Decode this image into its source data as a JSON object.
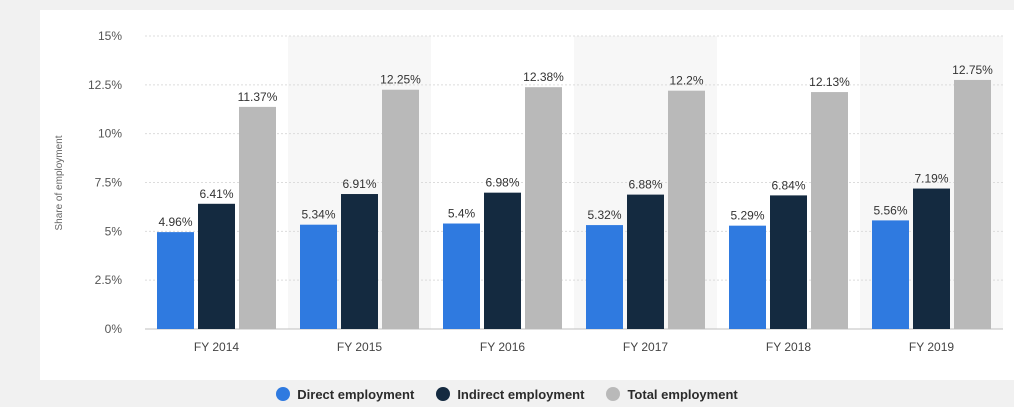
{
  "chart_data": {
    "type": "bar",
    "categories": [
      "FY 2014",
      "FY 2015",
      "FY 2016",
      "FY 2017",
      "FY 2018",
      "FY 2019"
    ],
    "series": [
      {
        "name": "Direct employment",
        "color": "#2f7ae0",
        "values": [
          4.96,
          5.34,
          5.4,
          5.32,
          5.29,
          5.56
        ],
        "labels": [
          "4.96%",
          "5.34%",
          "5.4%",
          "5.32%",
          "5.29%",
          "5.56%"
        ]
      },
      {
        "name": "Indirect employment",
        "color": "#142a40",
        "values": [
          6.41,
          6.91,
          6.98,
          6.88,
          6.84,
          7.19
        ],
        "labels": [
          "6.41%",
          "6.91%",
          "6.98%",
          "6.88%",
          "6.84%",
          "7.19%"
        ]
      },
      {
        "name": "Total employment",
        "color": "#b9b9b9",
        "values": [
          11.37,
          12.25,
          12.38,
          12.2,
          12.13,
          12.75
        ],
        "labels": [
          "11.37%",
          "12.25%",
          "12.38%",
          "12.2%",
          "12.13%",
          "12.75%"
        ]
      }
    ],
    "ylabel": "Share of employment",
    "ylim": [
      0,
      15
    ],
    "yticks": [
      {
        "value": 0,
        "label": "0%"
      },
      {
        "value": 2.5,
        "label": "2.5%"
      },
      {
        "value": 5,
        "label": "5%"
      },
      {
        "value": 7.5,
        "label": "7.5%"
      },
      {
        "value": 10,
        "label": "10%"
      },
      {
        "value": 12.5,
        "label": "12.5%"
      },
      {
        "value": 15,
        "label": "15%"
      }
    ],
    "grid": true,
    "legend_position": "bottom-center"
  }
}
